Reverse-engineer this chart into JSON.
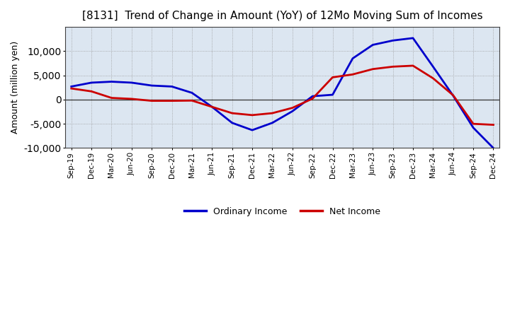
{
  "title": "[8131]  Trend of Change in Amount (YoY) of 12Mo Moving Sum of Incomes",
  "ylabel": "Amount (million yen)",
  "x_labels": [
    "Sep-19",
    "Dec-19",
    "Mar-20",
    "Jun-20",
    "Sep-20",
    "Dec-20",
    "Mar-21",
    "Jun-21",
    "Sep-21",
    "Dec-21",
    "Mar-22",
    "Jun-22",
    "Sep-22",
    "Dec-22",
    "Mar-23",
    "Jun-23",
    "Sep-23",
    "Dec-23",
    "Mar-24",
    "Jun-24",
    "Sep-24",
    "Dec-24"
  ],
  "ordinary_income": [
    2700,
    3500,
    3700,
    3500,
    2900,
    2700,
    1400,
    -1500,
    -4800,
    -6300,
    -4800,
    -2400,
    700,
    1000,
    8500,
    11300,
    12200,
    12700,
    6800,
    800,
    -5800,
    -10000
  ],
  "net_income": [
    2300,
    1700,
    350,
    150,
    -250,
    -250,
    -200,
    -1500,
    -2800,
    -3200,
    -2800,
    -1700,
    200,
    4600,
    5200,
    6300,
    6800,
    7000,
    4400,
    900,
    -5000,
    -5200
  ],
  "ordinary_color": "#0000cc",
  "net_color": "#cc0000",
  "ylim": [
    -10000,
    15000
  ],
  "yticks": [
    -10000,
    -5000,
    0,
    5000,
    10000
  ],
  "plot_bg_color": "#dce6f1",
  "fig_bg_color": "#ffffff",
  "grid_color": "#999999",
  "zero_line_color": "#404040",
  "legend_labels": [
    "Ordinary Income",
    "Net Income"
  ],
  "title_fontsize": 11,
  "ylabel_fontsize": 9,
  "tick_fontsize": 7.5,
  "legend_fontsize": 9
}
